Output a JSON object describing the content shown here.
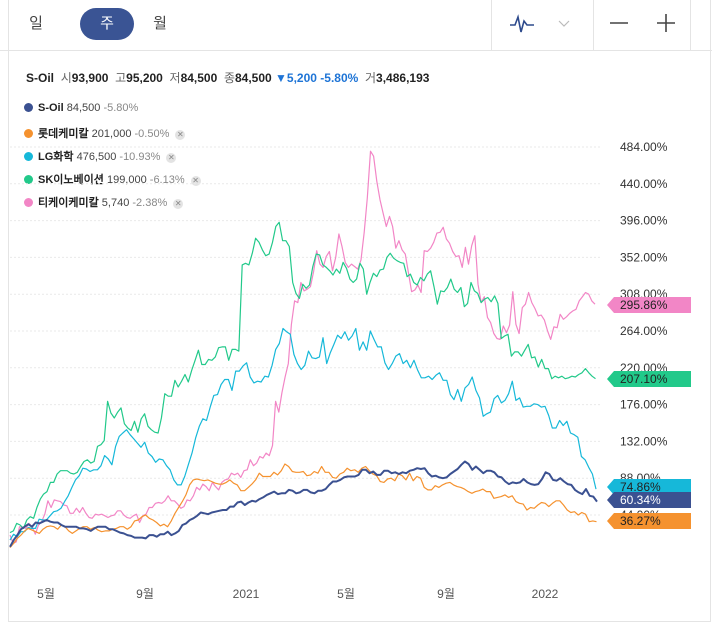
{
  "toolbar": {
    "periods": [
      "일",
      "주",
      "월"
    ],
    "active_period": "주",
    "icons": [
      "line-chart-icon",
      "dropdown-icon",
      "zoom-out-icon",
      "zoom-in-icon"
    ]
  },
  "summary": {
    "name": "S-Oil",
    "open_label": "시",
    "open": "93,900",
    "high_label": "고",
    "high": "95,200",
    "low_label": "저",
    "low": "84,500",
    "close_label": "종",
    "close": "84,500",
    "change": "▼5,200",
    "change_rate": "-5.80%",
    "volume_label": "거",
    "volume": "3,486,193"
  },
  "legend": [
    {
      "name": "S-Oil",
      "price": "84,500",
      "change": "-5.80%",
      "color": "#3b5191",
      "removable": false
    },
    {
      "name": "롯데케미칼",
      "price": "201,000",
      "change": "-0.50%",
      "color": "#f5922f",
      "removable": true
    },
    {
      "name": "LG화학",
      "price": "476,500",
      "change": "-10.93%",
      "color": "#16b8d9",
      "removable": true
    },
    {
      "name": "SK이노베이션",
      "price": "199,000",
      "change": "-6.13%",
      "color": "#22c98a",
      "removable": true
    },
    {
      "name": "티케이케미칼",
      "price": "5,740",
      "change": "-2.38%",
      "color": "#f286c6",
      "removable": true
    }
  ],
  "chart_data": {
    "type": "line",
    "x_tick_labels": [
      "5월",
      "9월",
      "2021",
      "5월",
      "9월",
      "2022"
    ],
    "y_tick_labels": [
      "484.00%",
      "440.00%",
      "396.00%",
      "352.00%",
      "308.00%",
      "264.00%",
      "220.00%",
      "176.00%",
      "132.00%",
      "88.00%",
      "44.00%"
    ],
    "ylim": [
      0,
      484
    ],
    "grid": true,
    "series": [
      {
        "name": "S-Oil",
        "color": "#3b5191",
        "last_label": "60.34%",
        "values": [
          6,
          14,
          20,
          27,
          30,
          33,
          30,
          35,
          34,
          36,
          38,
          36,
          35,
          35,
          32,
          30,
          30,
          30,
          30,
          28,
          28,
          27,
          25,
          28,
          30,
          30,
          30,
          27,
          27,
          25,
          23,
          22,
          20,
          19,
          17,
          17,
          17,
          16,
          20,
          20,
          18,
          21,
          21,
          24,
          20,
          22,
          25,
          32,
          34,
          38,
          40,
          43,
          47,
          46,
          45,
          47,
          48,
          49,
          50,
          50,
          54,
          54,
          59,
          60,
          56,
          59,
          61,
          60,
          63,
          65,
          68,
          70,
          72,
          69,
          70,
          70,
          74,
          73,
          70,
          71,
          74,
          74,
          71,
          70,
          73,
          73,
          75,
          80,
          84,
          84,
          86,
          89,
          90,
          90,
          90,
          92,
          98,
          98,
          94,
          96,
          92,
          92,
          97,
          97,
          94,
          95,
          93,
          95,
          94,
          97,
          98,
          100,
          99,
          100,
          94,
          90,
          91,
          89,
          88,
          89,
          93,
          96,
          99,
          104,
          108,
          105,
          98,
          102,
          98,
          94,
          97,
          97,
          95,
          90,
          89,
          84,
          81,
          83,
          82,
          83,
          87,
          83,
          81,
          80,
          81,
          87,
          95,
          93,
          86,
          85,
          88,
          84,
          81,
          80,
          74,
          71,
          69,
          75,
          67,
          66,
          60
        ]
      },
      {
        "name": "롯데케미칼",
        "color": "#f5922f",
        "last_label": "36.27%",
        "values": [
          5,
          10,
          16,
          20,
          25,
          28,
          26,
          24,
          22,
          27,
          30,
          31,
          30,
          27,
          32,
          30,
          25,
          22,
          25,
          28,
          30,
          30,
          27,
          29,
          26,
          24,
          25,
          25,
          27,
          28,
          30,
          30,
          27,
          30,
          37,
          38,
          42,
          44,
          40,
          38,
          35,
          31,
          33,
          30,
          37,
          46,
          53,
          60,
          68,
          80,
          86,
          87,
          86,
          85,
          86,
          84,
          82,
          81,
          81,
          83,
          86,
          82,
          80,
          73,
          73,
          77,
          81,
          86,
          94,
          90,
          90,
          90,
          95,
          92,
          97,
          105,
          102,
          96,
          95,
          95,
          96,
          91,
          92,
          96,
          94,
          102,
          95,
          95,
          89,
          88,
          93,
          95,
          100,
          97,
          98,
          95,
          100,
          102,
          97,
          93,
          91,
          84,
          83,
          87,
          88,
          85,
          93,
          91,
          86,
          94,
          85,
          90,
          88,
          77,
          74,
          74,
          79,
          77,
          80,
          82,
          83,
          80,
          78,
          77,
          75,
          72,
          70,
          72,
          73,
          75,
          72,
          72,
          64,
          65,
          66,
          68,
          65,
          67,
          60,
          58,
          57,
          50,
          53,
          52,
          56,
          59,
          58,
          54,
          58,
          61,
          61,
          56,
          50,
          47,
          48,
          44,
          47,
          45,
          36,
          37,
          36
        ]
      },
      {
        "name": "LG화학",
        "color": "#16b8d9",
        "last_label": "74.86%",
        "values": [
          14,
          21,
          18,
          24,
          24,
          29,
          28,
          28,
          39,
          38,
          38,
          43,
          48,
          49,
          52,
          60,
          67,
          77,
          86,
          91,
          100,
          99,
          96,
          98,
          98,
          103,
          115,
          111,
          104,
          126,
          138,
          142,
          146,
          140,
          135,
          130,
          125,
          131,
          118,
          114,
          107,
          111,
          110,
          103,
          98,
          86,
          80,
          80,
          90,
          104,
          118,
          136,
          150,
          159,
          157,
          173,
          187,
          188,
          200,
          206,
          206,
          193,
          216,
          216,
          222,
          226,
          209,
          202,
          204,
          203,
          210,
          209,
          223,
          242,
          249,
          267,
          263,
          260,
          236,
          225,
          218,
          223,
          240,
          232,
          231,
          233,
          256,
          225,
          238,
          248,
          259,
          255,
          263,
          253,
          258,
          267,
          241,
          251,
          241,
          264,
          254,
          245,
          245,
          226,
          218,
          225,
          234,
          237,
          225,
          229,
          220,
          229,
          217,
          208,
          208,
          210,
          206,
          211,
          214,
          205,
          205,
          188,
          182,
          194,
          180,
          196,
          200,
          209,
          193,
          184,
          162,
          165,
          167,
          183,
          187,
          178,
          181,
          189,
          204,
          181,
          184,
          173,
          174,
          174,
          177,
          176,
          173,
          174,
          163,
          148,
          148,
          157,
          151,
          156,
          142,
          140,
          137,
          114,
          110,
          101,
          93,
          75
        ]
      },
      {
        "name": "SK이노베이션",
        "color": "#22c98a",
        "last_label": "207.10%",
        "values": [
          23,
          25,
          34,
          32,
          28,
          38,
          42,
          40,
          53,
          63,
          69,
          72,
          83,
          83,
          93,
          97,
          97,
          97,
          94,
          93,
          95,
          102,
          108,
          110,
          106,
          108,
          126,
          128,
          133,
          180,
          166,
          160,
          167,
          172,
          153,
          148,
          145,
          156,
          143,
          159,
          165,
          150,
          146,
          143,
          142,
          160,
          189,
          186,
          186,
          205,
          197,
          204,
          212,
          203,
          217,
          229,
          241,
          224,
          224,
          230,
          229,
          233,
          244,
          245,
          245,
          229,
          242,
          242,
          240,
          343,
          345,
          343,
          357,
          375,
          370,
          361,
          354,
          356,
          370,
          389,
          394,
          372,
          372,
          365,
          322,
          309,
          303,
          320,
          315,
          319,
          341,
          356,
          355,
          343,
          340,
          336,
          331,
          338,
          333,
          346,
          339,
          326,
          322,
          326,
          345,
          338,
          308,
          322,
          333,
          329,
          337,
          338,
          352,
          357,
          351,
          348,
          346,
          345,
          329,
          332,
          322,
          319,
          328,
          324,
          332,
          336,
          317,
          296,
          312,
          311,
          316,
          326,
          314,
          310,
          316,
          293,
          297,
          322,
          312,
          309,
          298,
          302,
          304,
          299,
          306,
          297,
          255,
          258,
          260,
          234,
          239,
          239,
          234,
          241,
          248,
          232,
          233,
          221,
          230,
          219,
          219,
          207,
          210,
          208,
          210,
          207,
          208,
          210,
          209,
          212,
          214,
          219,
          214,
          210,
          207
        ]
      },
      {
        "name": "티케이케미칼",
        "color": "#f286c6",
        "last_label": "295.86%",
        "values": [
          20,
          10,
          12,
          30,
          29,
          28,
          34,
          30,
          21,
          32,
          36,
          45,
          61,
          53,
          62,
          61,
          60,
          56,
          55,
          46,
          46,
          52,
          47,
          53,
          46,
          41,
          40,
          45,
          44,
          45,
          43,
          41,
          43,
          44,
          49,
          49,
          44,
          41,
          40,
          43,
          45,
          35,
          43,
          45,
          53,
          53,
          58,
          59,
          58,
          61,
          67,
          61,
          61,
          57,
          52,
          54,
          62,
          61,
          67,
          77,
          74,
          81,
          78,
          73,
          83,
          78,
          74,
          83,
          86,
          87,
          94,
          92,
          94,
          89,
          97,
          98,
          110,
          103,
          106,
          114,
          112,
          118,
          115,
          127,
          180,
          167,
          190,
          209,
          225,
          272,
          300,
          298,
          322,
          312,
          314,
          317,
          335,
          360,
          344,
          340,
          353,
          359,
          336,
          352,
          380,
          365,
          346,
          340,
          344,
          341,
          338,
          349,
          382,
          423,
          479,
          473,
          443,
          421,
          405,
          389,
          401,
          389,
          363,
          372,
          361,
          356,
          334,
          311,
          313,
          319,
          310,
          360,
          359,
          363,
          370,
          381,
          382,
          388,
          374,
          369,
          359,
          353,
          354,
          340,
          364,
          344,
          366,
          378,
          320,
          298,
          305,
          280,
          274,
          261,
          255,
          254,
          270,
          262,
          271,
          311,
          272,
          261,
          292,
          296,
          310,
          298,
          291,
          282,
          283,
          277,
          264,
          254,
          269,
          268,
          284,
          278,
          281,
          285,
          288,
          290,
          300,
          305,
          310,
          308,
          300,
          296
        ]
      }
    ]
  }
}
